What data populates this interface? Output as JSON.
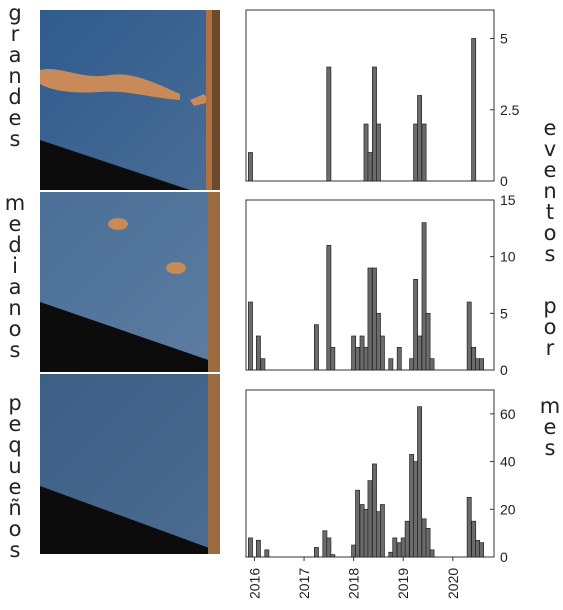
{
  "panel_labels": {
    "top": "grandes",
    "middle": "medianos",
    "bottom": "pequeños"
  },
  "shared_ylabel_words": [
    "eventos",
    "por",
    "mes"
  ],
  "colors": {
    "bar_fill": "#6b6b6b",
    "bar_stroke": "#222222",
    "axis": "#333333",
    "photo_water": "#3c5f86",
    "photo_dark": "#0c0c0c",
    "photo_stain": "#c98a5a",
    "photo_edge": "#b07040"
  },
  "chart_data": [
    {
      "type": "bar",
      "panel": "grandes",
      "x_unit": "year (decimal)",
      "xlim": [
        2015.83,
        2020.83
      ],
      "ylim": [
        0,
        6
      ],
      "yticks": [
        0,
        2.5,
        5
      ],
      "ytick_labels": [
        "0",
        "2.5",
        "5"
      ],
      "x": [
        2015.92,
        2017.5,
        2018.25,
        2018.33,
        2018.42,
        2018.5,
        2019.25,
        2019.33,
        2019.42,
        2020.42
      ],
      "values": [
        1,
        4,
        2,
        1,
        4,
        2,
        2,
        3,
        2,
        5
      ]
    },
    {
      "type": "bar",
      "panel": "medianos",
      "x_unit": "year (decimal)",
      "xlim": [
        2015.83,
        2020.83
      ],
      "ylim": [
        0,
        15
      ],
      "yticks": [
        0,
        5,
        10,
        15
      ],
      "ytick_labels": [
        "0",
        "5",
        "10",
        "15"
      ],
      "x": [
        2015.92,
        2016.08,
        2016.17,
        2017.25,
        2017.5,
        2017.58,
        2018.0,
        2018.08,
        2018.17,
        2018.25,
        2018.33,
        2018.42,
        2018.5,
        2018.58,
        2018.75,
        2018.92,
        2019.17,
        2019.25,
        2019.33,
        2019.42,
        2019.5,
        2019.58,
        2020.33,
        2020.42,
        2020.5,
        2020.58
      ],
      "values": [
        6,
        3,
        1,
        4,
        11,
        2,
        3,
        2,
        3,
        2,
        9,
        9,
        5,
        3,
        1,
        2,
        1,
        8,
        3,
        13,
        5,
        1,
        6,
        2,
        1,
        1
      ]
    },
    {
      "type": "bar",
      "panel": "pequeños",
      "x_unit": "year (decimal)",
      "xlim": [
        2015.83,
        2020.83
      ],
      "ylim": [
        0,
        70
      ],
      "yticks": [
        0,
        20,
        40,
        60
      ],
      "ytick_labels": [
        "0",
        "20",
        "40",
        "60"
      ],
      "xticks": [
        2016,
        2017,
        2018,
        2019,
        2020
      ],
      "xtick_labels": [
        "2016",
        "2017",
        "2018",
        "2019",
        "2020"
      ],
      "x": [
        2015.92,
        2016.08,
        2016.25,
        2017.25,
        2017.42,
        2017.5,
        2017.58,
        2018.0,
        2018.08,
        2018.17,
        2018.25,
        2018.33,
        2018.42,
        2018.5,
        2018.58,
        2018.75,
        2018.83,
        2018.92,
        2019.0,
        2019.08,
        2019.17,
        2019.25,
        2019.33,
        2019.42,
        2019.5,
        2019.58,
        2020.33,
        2020.42,
        2020.5,
        2020.58
      ],
      "values": [
        8,
        7,
        3,
        4,
        11,
        8,
        1,
        5,
        28,
        22,
        20,
        32,
        39,
        19,
        22,
        2,
        8,
        6,
        8,
        15,
        43,
        40,
        63,
        16,
        12,
        3,
        25,
        15,
        7,
        6
      ]
    }
  ]
}
